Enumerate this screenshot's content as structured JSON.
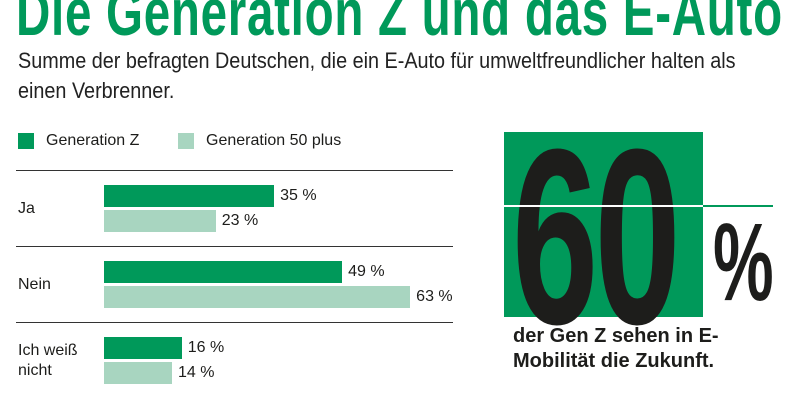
{
  "title": "Die Generation Z und das E-Auto",
  "subtitle": "Summe der befragten Deutschen, die ein E-Auto für umweltfreundlicher halten als einen Verbrenner.",
  "colors": {
    "gen_z": "#00995a",
    "gen_50": "#a8d5c0"
  },
  "chart_data": {
    "type": "bar",
    "orientation": "horizontal",
    "categories": [
      "Ja",
      "Nein",
      "Ich weiß nicht"
    ],
    "series": [
      {
        "name": "Generation Z",
        "values": [
          35,
          49,
          16
        ],
        "labels": [
          "35 %",
          "49 %",
          "16 %"
        ]
      },
      {
        "name": "Generation 50 plus",
        "values": [
          23,
          63,
          14
        ],
        "labels": [
          "23 %",
          "63 %",
          "14 %"
        ]
      }
    ],
    "unit": "%",
    "legend": "top-left",
    "grid": false
  },
  "callout": {
    "number": "60",
    "percent": "%",
    "text": "der Gen Z sehen in E-Mobilität die Zukunft."
  }
}
